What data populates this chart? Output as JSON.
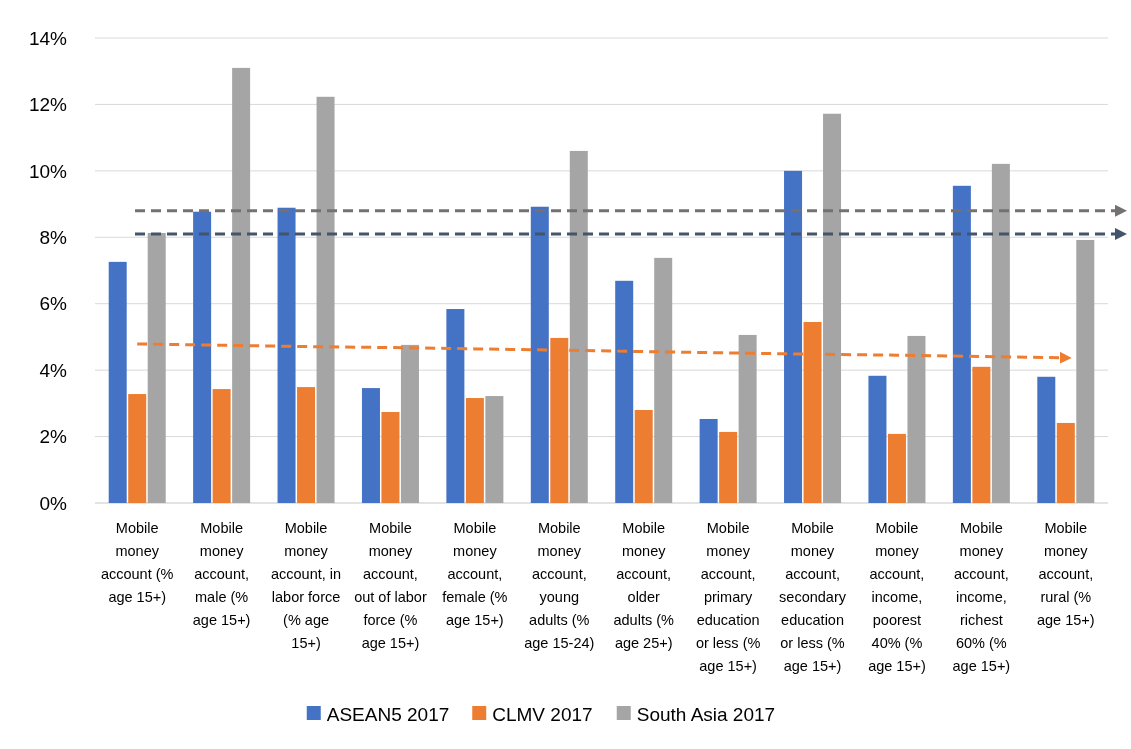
{
  "chart_data": {
    "type": "bar",
    "categories": [
      "Mobile money account (% age 15+)",
      "Mobile money account, male  (% age 15+)",
      "Mobile money account, in labor force (% age 15+)",
      "Mobile money account, out of labor force (% age 15+)",
      "Mobile money account, female (% age 15+)",
      "Mobile money account, young adults  (% age 15-24)",
      "Mobile money account, older adults (% age 25+)",
      "Mobile money account, primary education or less (% age 15+)",
      "Mobile money account, secondary education or less (% age 15+)",
      "Mobile money account, income, poorest 40% (% age 15+)",
      "Mobile money account, income, richest 60%  (% age 15+)",
      "Mobile money account, rural  (% age 15+)"
    ],
    "series": [
      {
        "name": "ASEAN5 2017",
        "color": "#4472c4",
        "values": [
          7.26,
          8.77,
          8.89,
          3.46,
          5.84,
          8.92,
          6.69,
          2.53,
          10.0,
          3.83,
          9.55,
          3.8
        ]
      },
      {
        "name": "CLMV 2017",
        "color": "#ed7d31",
        "values": [
          3.28,
          3.43,
          3.49,
          2.74,
          3.16,
          4.97,
          2.8,
          2.14,
          5.45,
          2.08,
          4.1,
          2.41
        ]
      },
      {
        "name": "South Asia 2017",
        "color": "#a5a5a5",
        "values": [
          8.13,
          13.1,
          12.23,
          4.76,
          3.22,
          10.6,
          7.38,
          5.06,
          11.72,
          5.03,
          10.21,
          7.92
        ]
      },
      {
        "type": "line",
        "color": "#ed7d31",
        "line_style": "dashed",
        "marker": "none",
        "values": [
          4.79,
          4.75,
          4.71,
          4.68,
          4.64,
          4.6,
          4.56,
          4.52,
          4.48,
          4.45,
          4.41,
          4.37
        ]
      }
    ],
    "ylim": [
      0,
      14
    ],
    "yticks": [
      {
        "value": 0,
        "label": "0%"
      },
      {
        "value": 2,
        "label": "2%"
      },
      {
        "value": 4,
        "label": "4%"
      },
      {
        "value": 6,
        "label": "6%"
      },
      {
        "value": 8,
        "label": "8%"
      },
      {
        "value": 10,
        "label": "10%"
      },
      {
        "value": 12,
        "label": "12%"
      },
      {
        "value": 14,
        "label": "14%"
      }
    ],
    "ref_lines": [
      {
        "axis": "y",
        "value": 8.8,
        "color": "#767171",
        "line_style": "dashed"
      },
      {
        "axis": "y",
        "value": 8.1,
        "color": "#44546a",
        "line_style": "dashed"
      }
    ],
    "grid": "y",
    "legend": "bottom"
  }
}
